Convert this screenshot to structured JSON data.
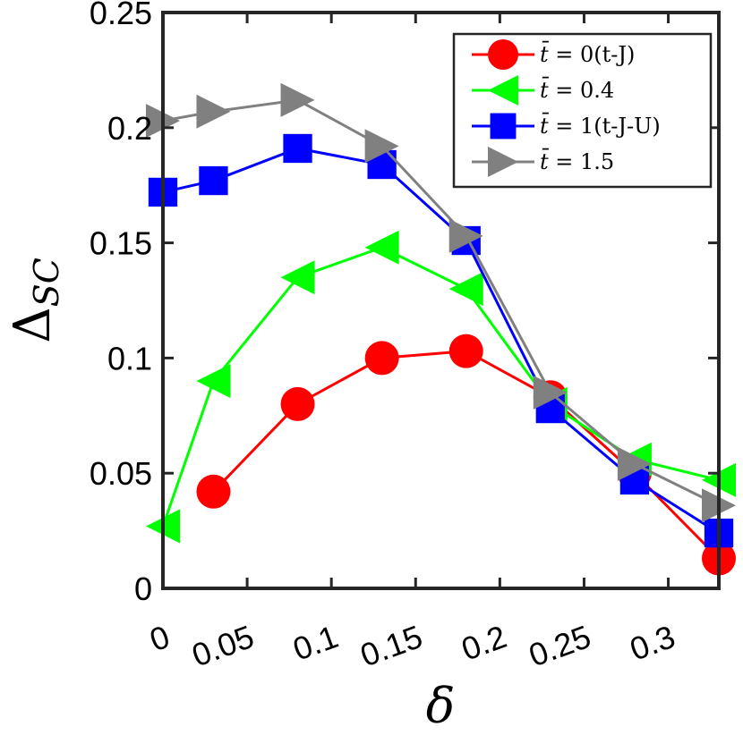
{
  "chart_data": {
    "type": "line",
    "xlabel": "δ",
    "ylabel_main": "Δ",
    "ylabel_sub": "SC",
    "xlim": [
      0,
      0.33
    ],
    "ylim": [
      0,
      0.25
    ],
    "xticks": [
      0,
      0.05,
      0.1,
      0.15,
      0.2,
      0.25,
      0.3
    ],
    "xtick_labels": [
      "0",
      "0.05",
      "0.1",
      "0.15",
      "0.2",
      "0.25",
      "0.3"
    ],
    "yticks": [
      0,
      0.05,
      0.1,
      0.15,
      0.2,
      0.25
    ],
    "ytick_labels": [
      "0",
      "0.05",
      "0.1",
      "0.15",
      "0.2",
      "0.25"
    ],
    "grid": false,
    "legend_position": "top-right",
    "series": [
      {
        "name": "t̄ = 0(t-J)",
        "label_var": "t̄",
        "label_rest": " = 0(t-J)",
        "color": "#ff0000",
        "marker": "circle",
        "x": [
          0.03,
          0.08,
          0.13,
          0.18,
          0.23,
          0.28,
          0.33
        ],
        "y": [
          0.042,
          0.08,
          0.1,
          0.103,
          0.083,
          0.05,
          0.013
        ]
      },
      {
        "name": "t̄ = 0.4",
        "label_var": "t̄",
        "label_rest": " = 0.4",
        "color": "#00ff00",
        "marker": "triangle-left",
        "x": [
          0,
          0.03,
          0.08,
          0.13,
          0.18,
          0.23,
          0.28,
          0.33
        ],
        "y": [
          0.027,
          0.09,
          0.135,
          0.148,
          0.13,
          0.08,
          0.056,
          0.047
        ]
      },
      {
        "name": "t̄ = 1(t-J-U)",
        "label_var": "t̄",
        "label_rest": " = 1(t-J-U)",
        "color": "#0000ff",
        "marker": "square",
        "x": [
          0,
          0.03,
          0.08,
          0.13,
          0.18,
          0.23,
          0.28,
          0.33
        ],
        "y": [
          0.172,
          0.177,
          0.191,
          0.184,
          0.151,
          0.078,
          0.047,
          0.024
        ]
      },
      {
        "name": "t̄ = 1.5",
        "label_var": "t̄",
        "label_rest": " = 1.5",
        "color": "#808080",
        "marker": "triangle-right",
        "x": [
          0,
          0.03,
          0.08,
          0.13,
          0.18,
          0.23,
          0.28,
          0.33
        ],
        "y": [
          0.203,
          0.207,
          0.212,
          0.192,
          0.153,
          0.085,
          0.054,
          0.036
        ]
      }
    ]
  }
}
